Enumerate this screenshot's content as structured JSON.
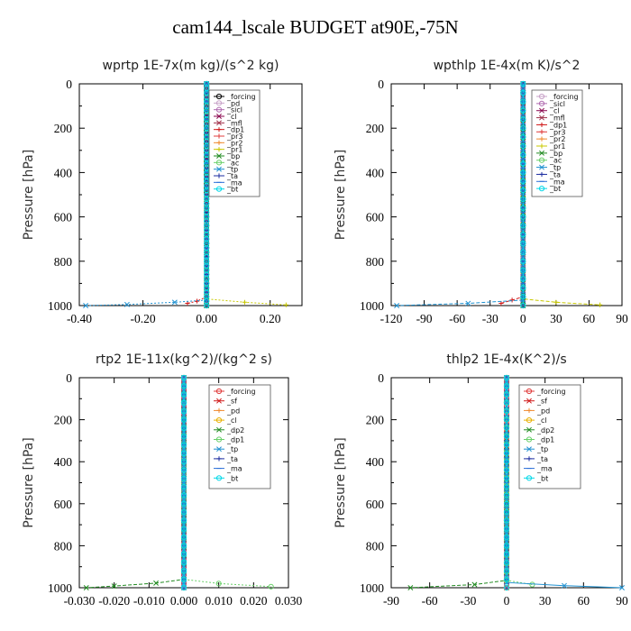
{
  "page": {
    "title": "cam144_lscale  BUDGET at90E,-75N"
  },
  "chart_data": [
    {
      "id": "wprtp",
      "type": "line",
      "title": "wprtp   1E-7x(m kg)/(s^2 kg)",
      "ylabel": "Pressure [hPa]",
      "xlim": [
        -0.4,
        0.3
      ],
      "xticks": [
        -0.4,
        -0.2,
        0.0,
        0.2
      ],
      "xtick_labels": [
        "-0.40",
        "-0.20",
        "0.00",
        "0.20"
      ],
      "ylim": [
        1000,
        0
      ],
      "yticks": [
        0,
        200,
        400,
        600,
        800,
        1000
      ],
      "legend_position": "top-right",
      "series": [
        {
          "name": "_forcing",
          "color": "#000000",
          "marker": "o",
          "values": [
            [
              0.0,
              0
            ],
            [
              0.0,
              500
            ],
            [
              0.0,
              1000
            ]
          ]
        },
        {
          "name": "_pd",
          "color": "#c8a2c8",
          "marker": "o",
          "values": [
            [
              0.0,
              0
            ],
            [
              0.0,
              1000
            ]
          ]
        },
        {
          "name": "_sicl",
          "color": "#b06bb0",
          "marker": "o",
          "values": [
            [
              0.0,
              0
            ],
            [
              0.0,
              1000
            ]
          ]
        },
        {
          "name": "_cl",
          "color": "#8b0a50",
          "marker": "x",
          "values": [
            [
              0.0,
              0
            ],
            [
              0.0,
              1000
            ]
          ]
        },
        {
          "name": "_mfl",
          "color": "#a0304a",
          "marker": "x",
          "values": [
            [
              0.0,
              0
            ],
            [
              0.0,
              1000
            ]
          ]
        },
        {
          "name": "_dp1",
          "color": "#d01818",
          "marker": "+",
          "values": [
            [
              0.0,
              0
            ],
            [
              0.0,
              960
            ],
            [
              -0.03,
              980
            ],
            [
              -0.06,
              990
            ]
          ]
        },
        {
          "name": "_pr3",
          "color": "#e03c3c",
          "marker": "+",
          "values": [
            [
              0.0,
              0
            ],
            [
              0.0,
              1000
            ]
          ]
        },
        {
          "name": "_pr2",
          "color": "#f08a30",
          "marker": "+",
          "values": [
            [
              0.0,
              0
            ],
            [
              0.0,
              1000
            ]
          ]
        },
        {
          "name": "_pr1",
          "color": "#c8c800",
          "marker": "+",
          "values": [
            [
              0.0,
              0
            ],
            [
              0.0,
              970
            ],
            [
              0.12,
              985
            ],
            [
              0.25,
              997
            ]
          ]
        },
        {
          "name": "_bp",
          "color": "#228b22",
          "marker": "x",
          "values": [
            [
              0.0,
              0
            ],
            [
              0.0,
              1000
            ]
          ]
        },
        {
          "name": "_ac",
          "color": "#6ad06a",
          "marker": "o",
          "values": [
            [
              0.0,
              0
            ],
            [
              0.0,
              1000
            ]
          ]
        },
        {
          "name": "_tp",
          "color": "#1e90d0",
          "marker": "x",
          "values": [
            [
              0.0,
              0
            ],
            [
              0.0,
              975
            ],
            [
              -0.1,
              985
            ],
            [
              -0.25,
              995
            ],
            [
              -0.38,
              1000
            ]
          ]
        },
        {
          "name": "_ta",
          "color": "#1c2ca0",
          "marker": "+",
          "values": [
            [
              0.0,
              0
            ],
            [
              0.0,
              1000
            ]
          ]
        },
        {
          "name": "_ma",
          "color": "#2a6fd8",
          "marker": "-",
          "values": [
            [
              0.0,
              0
            ],
            [
              0.0,
              1000
            ]
          ]
        },
        {
          "name": "_bt",
          "color": "#00d8e8",
          "marker": "o",
          "values": [
            [
              0.0,
              0
            ],
            [
              0.0,
              1000
            ]
          ]
        }
      ]
    },
    {
      "id": "wpthlp",
      "type": "line",
      "title": "wpthlp   1E-4x(m K)/s^2",
      "ylabel": "Pressure [hPa]",
      "xlim": [
        -120,
        90
      ],
      "xticks": [
        -120,
        -90,
        -60,
        -30,
        0,
        30,
        60,
        90
      ],
      "xtick_labels": [
        "-120",
        "-90",
        "-60",
        "-30",
        "0",
        "30",
        "60",
        "90"
      ],
      "ylim": [
        1000,
        0
      ],
      "yticks": [
        0,
        200,
        400,
        600,
        800,
        1000
      ],
      "legend_position": "top-right",
      "series": [
        {
          "name": "_forcing",
          "color": "#c8a2c8",
          "marker": "o",
          "values": [
            [
              0.0,
              0
            ],
            [
              0.0,
              1000
            ]
          ]
        },
        {
          "name": "_sicl",
          "color": "#b06bb0",
          "marker": "o",
          "values": [
            [
              0.0,
              0
            ],
            [
              0.0,
              1000
            ]
          ]
        },
        {
          "name": "_cl",
          "color": "#8b0a50",
          "marker": "x",
          "values": [
            [
              0.0,
              0
            ],
            [
              0.0,
              1000
            ]
          ]
        },
        {
          "name": "_mfl",
          "color": "#a0304a",
          "marker": "x",
          "values": [
            [
              0.0,
              0
            ],
            [
              0.0,
              1000
            ]
          ]
        },
        {
          "name": "_dp1",
          "color": "#d01818",
          "marker": "+",
          "values": [
            [
              0.0,
              0
            ],
            [
              0.0,
              960
            ],
            [
              -10,
              975
            ],
            [
              -20,
              990
            ]
          ]
        },
        {
          "name": "_pr3",
          "color": "#e03c3c",
          "marker": "+",
          "values": [
            [
              0.0,
              0
            ],
            [
              0.0,
              1000
            ]
          ]
        },
        {
          "name": "_pr2",
          "color": "#f08a30",
          "marker": "+",
          "values": [
            [
              0.0,
              0
            ],
            [
              0.0,
              1000
            ]
          ]
        },
        {
          "name": "_pr1",
          "color": "#c8c800",
          "marker": "+",
          "values": [
            [
              0.0,
              0
            ],
            [
              0.0,
              970
            ],
            [
              30,
              985
            ],
            [
              70,
              997
            ]
          ]
        },
        {
          "name": "_bp",
          "color": "#228b22",
          "marker": "x",
          "values": [
            [
              0.0,
              0
            ],
            [
              0.0,
              1000
            ]
          ]
        },
        {
          "name": "_ac",
          "color": "#6ad06a",
          "marker": "o",
          "values": [
            [
              0.0,
              0
            ],
            [
              0.0,
              1000
            ]
          ]
        },
        {
          "name": "_tp",
          "color": "#1e90d0",
          "marker": "x",
          "values": [
            [
              0.0,
              0
            ],
            [
              0.0,
              975
            ],
            [
              -50,
              990
            ],
            [
              -115,
              1000
            ]
          ]
        },
        {
          "name": "_ta",
          "color": "#1c2ca0",
          "marker": "+",
          "values": [
            [
              0.0,
              0
            ],
            [
              0.0,
              1000
            ]
          ]
        },
        {
          "name": "_ma",
          "color": "#2a6fd8",
          "marker": "-",
          "values": [
            [
              0.0,
              0
            ],
            [
              0.0,
              1000
            ]
          ]
        },
        {
          "name": "_bt",
          "color": "#00d8e8",
          "marker": "o",
          "values": [
            [
              0.0,
              0
            ],
            [
              0.0,
              1000
            ]
          ]
        }
      ]
    },
    {
      "id": "rtp2",
      "type": "line",
      "title": "rtp2   1E-11x(kg^2)/(kg^2 s)",
      "ylabel": "Pressure [hPa]",
      "xlim": [
        -0.03,
        0.03
      ],
      "xticks": [
        -0.03,
        -0.02,
        -0.01,
        0.0,
        0.01,
        0.02,
        0.03
      ],
      "xtick_labels": [
        "-0.030",
        "-0.020",
        "-0.010",
        "0.000",
        "0.010",
        "0.020",
        "0.030"
      ],
      "ylim": [
        1000,
        0
      ],
      "yticks": [
        0,
        200,
        400,
        600,
        800,
        1000
      ],
      "legend_position": "top-right",
      "series": [
        {
          "name": "_forcing",
          "color": "#e03c3c",
          "marker": "o",
          "values": [
            [
              0.0,
              0
            ],
            [
              0.0,
              1000
            ]
          ]
        },
        {
          "name": "_sf",
          "color": "#d01818",
          "marker": "x",
          "values": [
            [
              0.0,
              0
            ],
            [
              0.0,
              1000
            ]
          ]
        },
        {
          "name": "_pd",
          "color": "#f08a30",
          "marker": "+",
          "values": [
            [
              0.0,
              0
            ],
            [
              0.0,
              1000
            ]
          ]
        },
        {
          "name": "_cl",
          "color": "#e8b000",
          "marker": "o",
          "values": [
            [
              0.0,
              0
            ],
            [
              0.0,
              1000
            ]
          ]
        },
        {
          "name": "_dp2",
          "color": "#228b22",
          "marker": "x",
          "values": [
            [
              0.0,
              0
            ],
            [
              0.0,
              960
            ],
            [
              -0.008,
              978
            ],
            [
              -0.02,
              992
            ],
            [
              -0.028,
              1000
            ]
          ]
        },
        {
          "name": "_dp1",
          "color": "#6ad06a",
          "marker": "o",
          "values": [
            [
              0.0,
              0
            ],
            [
              0.0,
              960
            ],
            [
              0.01,
              980
            ],
            [
              0.025,
              995
            ]
          ]
        },
        {
          "name": "_tp",
          "color": "#1e90d0",
          "marker": "x",
          "values": [
            [
              0.0,
              0
            ],
            [
              0.0,
              1000
            ]
          ]
        },
        {
          "name": "_ta",
          "color": "#1c2ca0",
          "marker": "+",
          "values": [
            [
              0.0,
              0
            ],
            [
              0.0,
              1000
            ]
          ]
        },
        {
          "name": "_ma",
          "color": "#2a6fd8",
          "marker": "-",
          "values": [
            [
              0.0,
              0
            ],
            [
              0.0,
              1000
            ]
          ]
        },
        {
          "name": "_bt",
          "color": "#00d8e8",
          "marker": "o",
          "values": [
            [
              0.0,
              0
            ],
            [
              0.0,
              1000
            ]
          ]
        }
      ]
    },
    {
      "id": "thlp2",
      "type": "line",
      "title": "thlp2   1E-4x(K^2)/s",
      "ylabel": "Pressure [hPa]",
      "xlim": [
        -90,
        90
      ],
      "xticks": [
        -90,
        -60,
        -30,
        0,
        30,
        60,
        90
      ],
      "xtick_labels": [
        "-90",
        "-60",
        "-30",
        "0",
        "30",
        "60",
        "90"
      ],
      "ylim": [
        1000,
        0
      ],
      "yticks": [
        0,
        200,
        400,
        600,
        800,
        1000
      ],
      "legend_position": "top-right",
      "series": [
        {
          "name": "_forcing",
          "color": "#e03c3c",
          "marker": "o",
          "values": [
            [
              0.0,
              0
            ],
            [
              0.0,
              1000
            ]
          ]
        },
        {
          "name": "_sf",
          "color": "#d01818",
          "marker": "x",
          "values": [
            [
              0.0,
              0
            ],
            [
              0.0,
              1000
            ]
          ]
        },
        {
          "name": "_pd",
          "color": "#f08a30",
          "marker": "+",
          "values": [
            [
              0.0,
              0
            ],
            [
              0.0,
              1000
            ]
          ]
        },
        {
          "name": "_cl",
          "color": "#e8b000",
          "marker": "o",
          "values": [
            [
              0.0,
              0
            ],
            [
              0.0,
              1000
            ]
          ]
        },
        {
          "name": "_dp2",
          "color": "#228b22",
          "marker": "x",
          "values": [
            [
              0.0,
              0
            ],
            [
              0.0,
              965
            ],
            [
              -25,
              985
            ],
            [
              -75,
              1000
            ]
          ]
        },
        {
          "name": "_dp1",
          "color": "#6ad06a",
          "marker": "o",
          "values": [
            [
              0.0,
              0
            ],
            [
              0.0,
              965
            ],
            [
              20,
              985
            ]
          ]
        },
        {
          "name": "_tp",
          "color": "#1e90d0",
          "marker": "x",
          "values": [
            [
              0.0,
              0
            ],
            [
              0.0,
              975
            ],
            [
              45,
              990
            ],
            [
              90,
              1000
            ]
          ]
        },
        {
          "name": "_ta",
          "color": "#1c2ca0",
          "marker": "+",
          "values": [
            [
              0.0,
              0
            ],
            [
              0.0,
              1000
            ]
          ]
        },
        {
          "name": "_ma",
          "color": "#2a6fd8",
          "marker": "-",
          "values": [
            [
              0.0,
              0
            ],
            [
              0.0,
              1000
            ]
          ]
        },
        {
          "name": "_bt",
          "color": "#00d8e8",
          "marker": "o",
          "values": [
            [
              0.0,
              0
            ],
            [
              0.0,
              1000
            ]
          ]
        }
      ]
    }
  ]
}
